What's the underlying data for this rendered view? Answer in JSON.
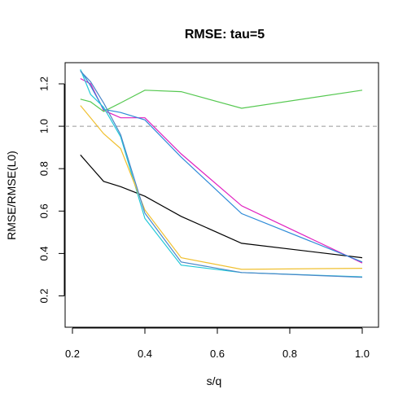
{
  "chart_data": {
    "type": "line",
    "title": "RMSE: tau=5",
    "xlabel": "s/q",
    "ylabel": "RMSE/RMSE(L0)",
    "xlim": [
      0.2,
      1.0
    ],
    "ylim": [
      0.05,
      1.3
    ],
    "xticks": [
      "0.2",
      "0.4",
      "0.6",
      "0.8",
      "1.0"
    ],
    "yticks": [
      "0.2",
      "0.4",
      "0.6",
      "0.8",
      "1.0",
      "1.2"
    ],
    "reference_line": {
      "y": 1.0,
      "color": "#999999",
      "style": "dashed"
    },
    "grid": false,
    "x": [
      0.222,
      0.25,
      0.286,
      0.333,
      0.4,
      0.5,
      0.667,
      1.0
    ],
    "series": [
      {
        "color": "#000000",
        "values": [
          0.865,
          0.81,
          0.74,
          0.715,
          0.67,
          0.575,
          0.448,
          0.38
        ]
      },
      {
        "color": "#e020c0",
        "values": [
          1.225,
          1.2,
          1.075,
          1.04,
          1.04,
          0.87,
          0.625,
          0.355
        ]
      },
      {
        "color": "#2e8bd8",
        "values": [
          1.265,
          1.19,
          1.08,
          1.065,
          1.03,
          0.855,
          0.588,
          0.36
        ]
      },
      {
        "color": "#55c850",
        "values": [
          1.128,
          1.115,
          1.07,
          1.11,
          1.17,
          1.163,
          1.085,
          1.17
        ]
      },
      {
        "color": "#20c8d8",
        "values": [
          1.268,
          1.15,
          1.09,
          0.95,
          0.565,
          0.345,
          0.31,
          0.29
        ]
      },
      {
        "color": "#f0c030",
        "values": [
          1.098,
          1.04,
          0.965,
          0.895,
          0.605,
          0.38,
          0.325,
          0.33
        ]
      },
      {
        "color": "#4a86c8",
        "values": [
          1.26,
          1.21,
          1.11,
          0.96,
          0.59,
          0.36,
          0.31,
          0.288
        ]
      }
    ]
  }
}
